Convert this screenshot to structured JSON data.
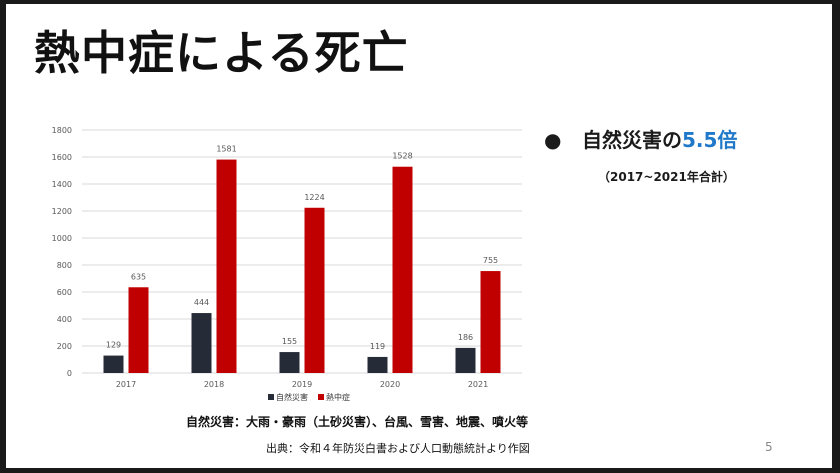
{
  "slide": {
    "title": "熱中症による死亡",
    "bullet": {
      "marker": "●",
      "text_before": "自然災害の",
      "highlight": "5.5倍"
    },
    "sub_note": "（2017~2021年合計）",
    "footnote_types": "自然災害：大雨・豪雨（土砂災害）、台風、雪害、地震、噴火等",
    "source": "出典：令和４年防災白書および人口動態統計より作図",
    "page_number": "5"
  },
  "colors": {
    "natural_disaster": "#252b37",
    "heatstroke": "#c00000",
    "highlight": "#1f78c8",
    "grid": "#d9d9d9"
  },
  "chart_data": {
    "type": "bar",
    "categories": [
      "2017",
      "2018",
      "2019",
      "2020",
      "2021"
    ],
    "series": [
      {
        "name": "自然災害",
        "values": [
          129,
          444,
          155,
          119,
          186
        ]
      },
      {
        "name": "熱中症",
        "values": [
          635,
          1581,
          1224,
          1528,
          755
        ]
      }
    ],
    "yticks": [
      0,
      200,
      400,
      600,
      800,
      1000,
      1200,
      1400,
      1600,
      1800
    ],
    "ylim": [
      0,
      1800
    ],
    "grid": true,
    "legend_position": "bottom",
    "data_labels": true
  }
}
